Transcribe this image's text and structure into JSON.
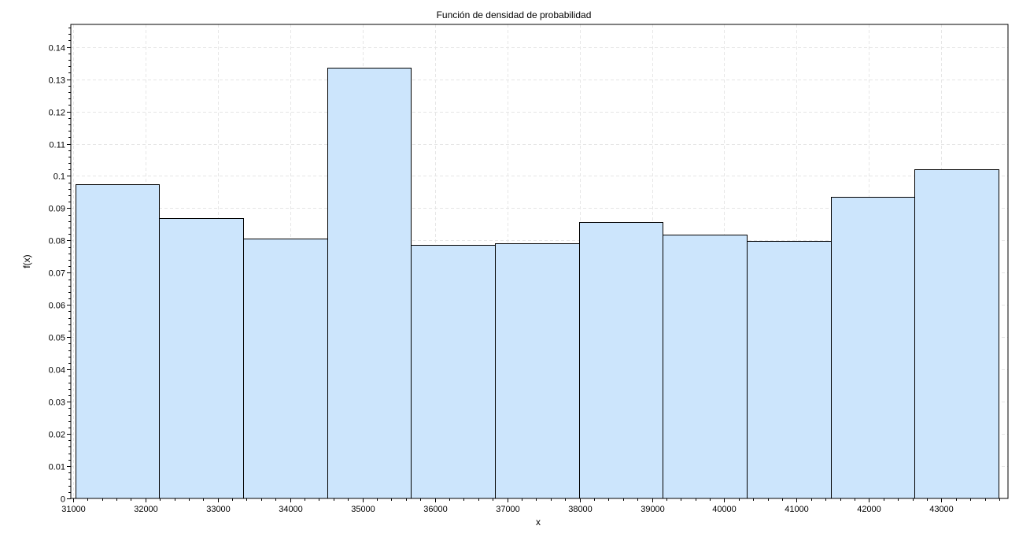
{
  "chart_data": {
    "type": "bar",
    "title": "Función de densidad de probabilidad",
    "xlabel": "x",
    "ylabel": "f(x)",
    "xlim": [
      30970,
      43920
    ],
    "ylim": [
      0,
      0.147
    ],
    "grid": true,
    "bin_edges": [
      31030,
      32190,
      33350,
      34510,
      35670,
      36830,
      37990,
      39150,
      40310,
      41470,
      42630,
      43790
    ],
    "values": [
      0.0975,
      0.087,
      0.0807,
      0.1335,
      0.0787,
      0.0792,
      0.0857,
      0.0818,
      0.0798,
      0.0935,
      0.1021
    ],
    "x_ticks": [
      31000,
      32000,
      33000,
      34000,
      35000,
      36000,
      37000,
      38000,
      39000,
      40000,
      41000,
      42000,
      43000
    ],
    "x_tick_labels": [
      "31000",
      "32000",
      "33000",
      "34000",
      "35000",
      "36000",
      "37000",
      "38000",
      "39000",
      "40000",
      "41000",
      "42000",
      "43000"
    ],
    "y_ticks": [
      0,
      0.01,
      0.02,
      0.03,
      0.04,
      0.05,
      0.06,
      0.07,
      0.08,
      0.09,
      0.1,
      0.11,
      0.12,
      0.13,
      0.14
    ],
    "y_tick_labels": [
      "0",
      "0.01",
      "0.02",
      "0.03",
      "0.04",
      "0.05",
      "0.06",
      "0.07",
      "0.08",
      "0.09",
      "0.1",
      "0.11",
      "0.12",
      "0.13",
      "0.14"
    ],
    "colors": {
      "bar_fill": "#cce5fc",
      "bar_stroke": "#000000",
      "grid": "#e6e6e6"
    }
  }
}
